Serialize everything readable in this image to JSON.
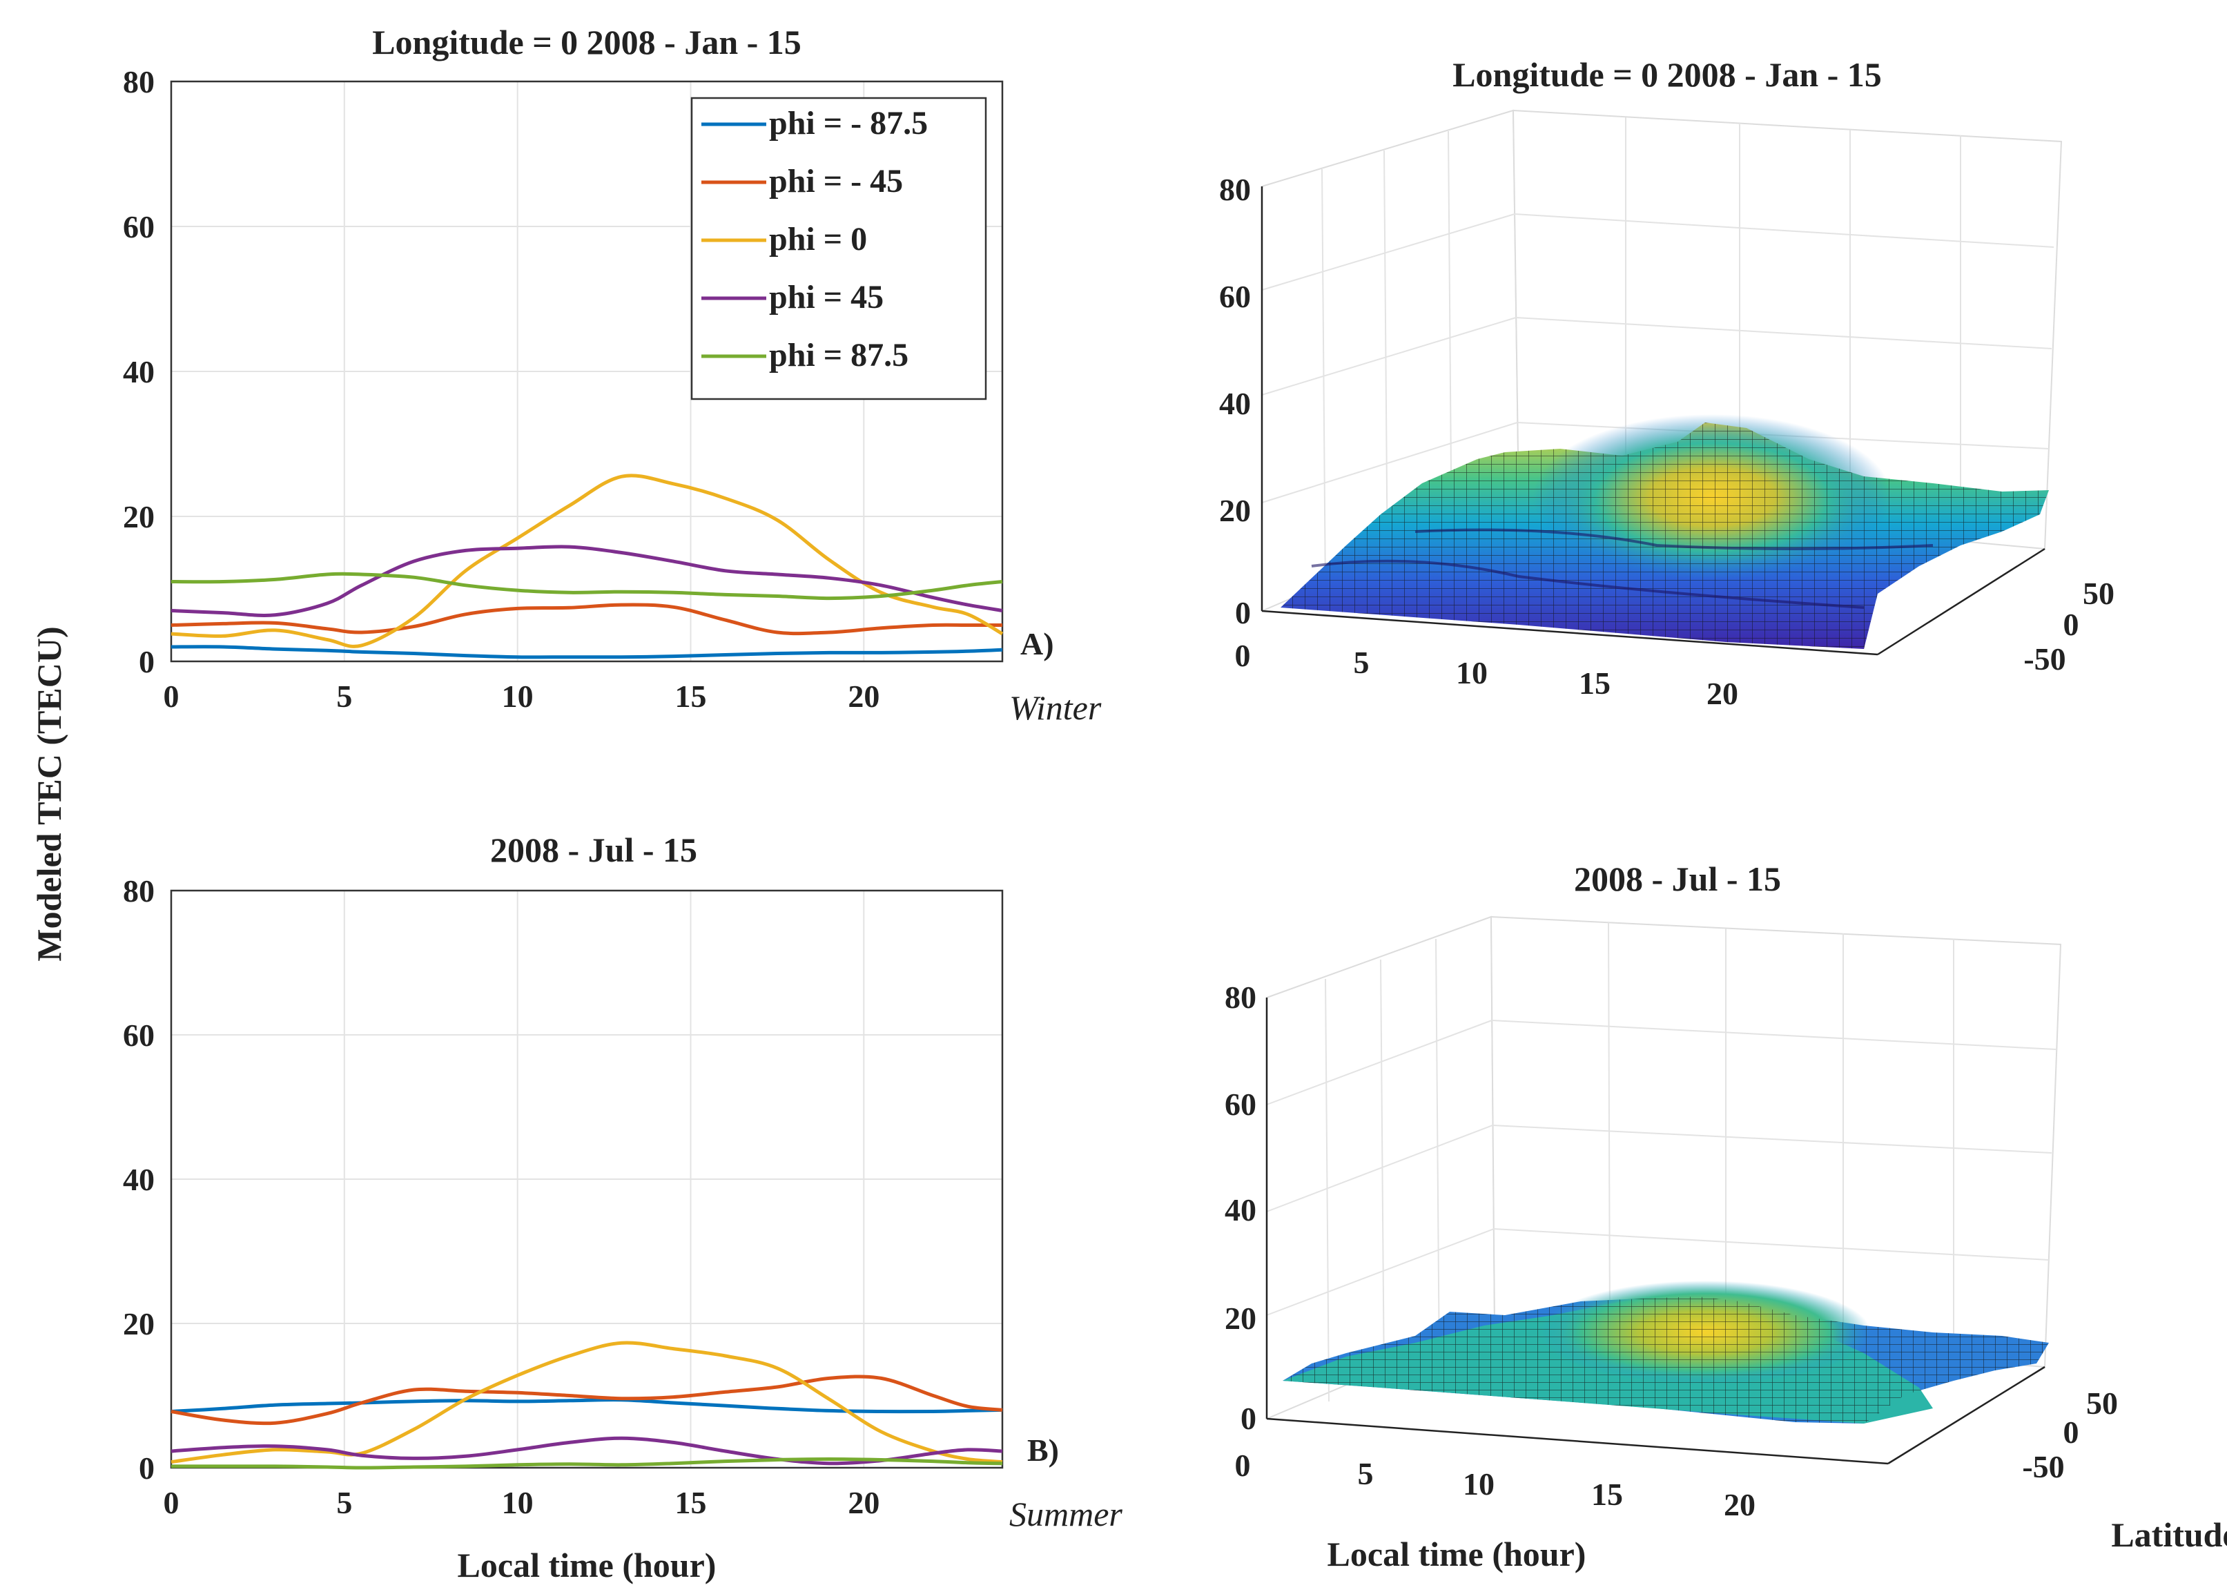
{
  "ylabel": "Modeled TEC (TECU)",
  "chart_data": [
    {
      "id": "A",
      "type": "line",
      "title": "Longitude = 0   2008 - Jan - 15",
      "panel_tag": "A)",
      "season": "Winter",
      "xlabel": "",
      "ylabel": "Modeled TEC (TECU)",
      "xlim": [
        0,
        24
      ],
      "ylim": [
        0,
        80
      ],
      "xticks": [
        0,
        5,
        10,
        15,
        20
      ],
      "yticks": [
        0,
        20,
        40,
        60,
        80
      ],
      "grid": true,
      "legend_position": "top-right",
      "x": [
        0,
        1.5,
        3,
        4.5,
        5.5,
        7,
        8.5,
        10,
        11.5,
        13,
        14.5,
        16,
        17.5,
        19,
        20.5,
        22,
        23,
        24
      ],
      "series": [
        {
          "name": "phi = - 87.5",
          "color": "#0072BD",
          "values": [
            2,
            2,
            1.7,
            1.5,
            1.3,
            1.1,
            0.8,
            0.6,
            0.6,
            0.6,
            0.7,
            0.9,
            1.1,
            1.2,
            1.2,
            1.3,
            1.4,
            1.6
          ]
        },
        {
          "name": "phi = - 45",
          "color": "#D95319",
          "values": [
            5,
            5.2,
            5.3,
            4.5,
            4,
            4.8,
            6.5,
            7.3,
            7.4,
            7.8,
            7.5,
            5.7,
            4,
            4,
            4.6,
            5,
            5,
            5
          ]
        },
        {
          "name": "phi = 0",
          "color": "#EDB120",
          "values": [
            3.8,
            3.5,
            4.3,
            3,
            2.2,
            6,
            12.5,
            17,
            21.5,
            25.5,
            24.5,
            22.5,
            19.5,
            14,
            9.5,
            7.5,
            6.5,
            3.8
          ]
        },
        {
          "name": "phi = 45",
          "color": "#7E2F8E",
          "values": [
            7,
            6.7,
            6.4,
            8,
            10.5,
            13.8,
            15.3,
            15.6,
            15.8,
            15,
            13.8,
            12.5,
            12,
            11.5,
            10.5,
            8.8,
            7.8,
            7
          ]
        },
        {
          "name": "phi = 87.5",
          "color": "#77AC30",
          "values": [
            11,
            11,
            11.3,
            12,
            12,
            11.6,
            10.5,
            9.8,
            9.5,
            9.6,
            9.5,
            9.2,
            9,
            8.7,
            9,
            9.8,
            10.5,
            11
          ]
        }
      ]
    },
    {
      "id": "B",
      "type": "line",
      "title": "2008 - Jul - 15",
      "panel_tag": "B)",
      "season": "Summer",
      "xlabel": "Local time (hour)",
      "ylabel": "Modeled TEC (TECU)",
      "xlim": [
        0,
        24
      ],
      "ylim": [
        0,
        80
      ],
      "xticks": [
        0,
        5,
        10,
        15,
        20
      ],
      "yticks": [
        0,
        20,
        40,
        60,
        80
      ],
      "grid": true,
      "x": [
        0,
        1.5,
        3,
        4.5,
        5.5,
        7,
        8.5,
        10,
        11.5,
        13,
        14.5,
        16,
        17.5,
        19,
        20.5,
        22,
        23,
        24
      ],
      "series": [
        {
          "name": "phi = - 87.5",
          "color": "#0072BD",
          "values": [
            7.8,
            8.2,
            8.7,
            8.9,
            9,
            9.2,
            9.3,
            9.2,
            9.3,
            9.4,
            9,
            8.6,
            8.2,
            7.9,
            7.8,
            7.8,
            7.9,
            8
          ]
        },
        {
          "name": "phi = - 45",
          "color": "#D95319",
          "values": [
            7.8,
            6.6,
            6.2,
            7.5,
            9,
            10.8,
            10.6,
            10.4,
            10,
            9.6,
            9.8,
            10.5,
            11.2,
            12.4,
            12.4,
            10,
            8.5,
            8
          ]
        },
        {
          "name": "phi = 0",
          "color": "#EDB120",
          "values": [
            0.8,
            1.8,
            2.5,
            2.2,
            2,
            5.3,
            9.5,
            12.8,
            15.5,
            17.3,
            16.5,
            15.5,
            13.8,
            9.5,
            5,
            2.3,
            1.2,
            0.8
          ]
        },
        {
          "name": "phi = 45",
          "color": "#7E2F8E",
          "values": [
            2.3,
            2.8,
            3,
            2.5,
            1.7,
            1.3,
            1.6,
            2.5,
            3.5,
            4.1,
            3.5,
            2.3,
            1.2,
            0.6,
            1,
            2,
            2.5,
            2.3
          ]
        },
        {
          "name": "phi = 87.5",
          "color": "#77AC30",
          "values": [
            0.2,
            0.2,
            0.2,
            0.1,
            0,
            0.1,
            0.2,
            0.4,
            0.5,
            0.4,
            0.6,
            0.9,
            1.1,
            1.2,
            1.1,
            0.9,
            0.7,
            0.6
          ]
        }
      ]
    },
    {
      "id": "C",
      "type": "surface",
      "title": "Longitude = 0   2008 - Jan - 15",
      "xlabel": "",
      "ylabel": "",
      "zlim": [
        0,
        80
      ],
      "x_ticks": [
        "0",
        "5",
        "10",
        "15",
        "20"
      ],
      "y_ticks": [
        "50",
        "0",
        "-50"
      ],
      "z_ticks": [
        "0",
        "20",
        "40",
        "60",
        "80"
      ],
      "peak": {
        "local_time": 13,
        "latitude": 0,
        "tec": 26
      },
      "colormap": "parula"
    },
    {
      "id": "D",
      "type": "surface",
      "title": "2008 - Jul - 15",
      "xlabel": "Local time (hour)",
      "ylabel": "Latitude",
      "zlim": [
        0,
        80
      ],
      "x_ticks": [
        "0",
        "5",
        "10",
        "15",
        "20"
      ],
      "y_ticks": [
        "50",
        "0",
        "-50"
      ],
      "z_ticks": [
        "0",
        "20",
        "40",
        "60",
        "80"
      ],
      "peak": {
        "local_time": 13,
        "latitude": 0,
        "tec": 17
      },
      "colormap": "parula"
    }
  ]
}
